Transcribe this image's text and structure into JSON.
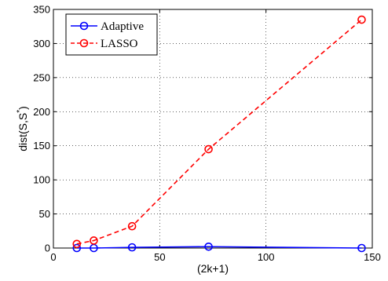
{
  "chart_data": {
    "type": "line",
    "xlabel": "(2k+1)",
    "ylabel": "dist(S,S*)",
    "xlim": [
      0,
      150
    ],
    "ylim": [
      0,
      350
    ],
    "xticks": [
      0,
      50,
      100,
      150
    ],
    "yticks": [
      0,
      50,
      100,
      150,
      200,
      250,
      300,
      350
    ],
    "grid": true,
    "legend_position": "top-left",
    "series": [
      {
        "name": "Adaptive",
        "color": "#0000ff",
        "line_style": "solid",
        "marker": "circle",
        "x": [
          11,
          19,
          37,
          73,
          145
        ],
        "y": [
          0,
          0,
          1,
          2,
          0
        ]
      },
      {
        "name": "LASSO",
        "color": "#ff0000",
        "line_style": "dashed",
        "marker": "circle",
        "x": [
          11,
          19,
          37,
          73,
          145
        ],
        "y": [
          6,
          11,
          32,
          145,
          335
        ]
      }
    ]
  }
}
